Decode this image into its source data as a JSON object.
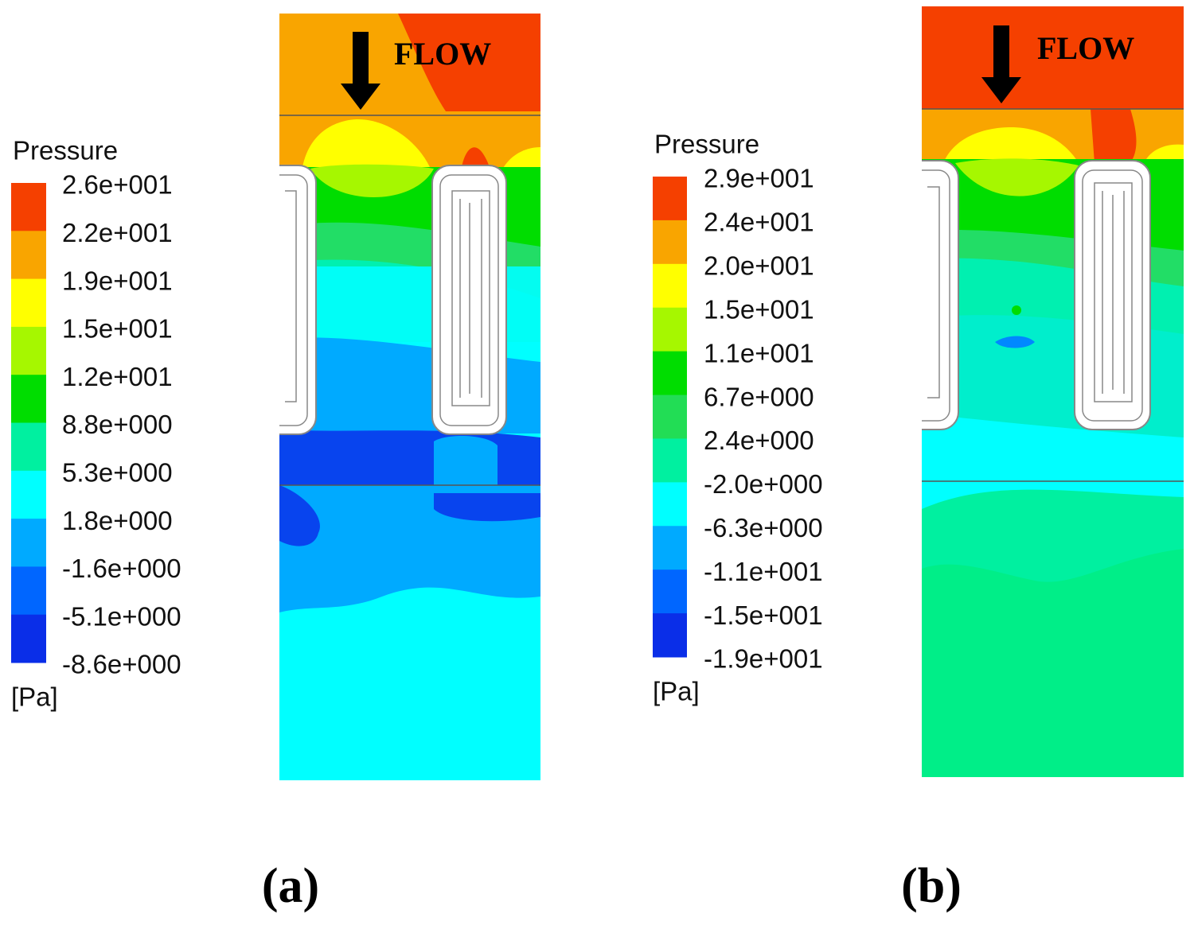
{
  "panels": [
    {
      "caption": "(a)",
      "annotation": "FLOW",
      "legend": {
        "title": "Pressure",
        "unit": "[Pa]",
        "labels": [
          "2.6e+001",
          "2.2e+001",
          "1.9e+001",
          "1.5e+001",
          "1.2e+001",
          "8.8e+000",
          "5.3e+000",
          "1.8e+000",
          "-1.6e+000",
          "-5.1e+000",
          "-8.6e+000"
        ]
      }
    },
    {
      "caption": "(b)",
      "annotation": "FLOW",
      "legend": {
        "title": "Pressure",
        "unit": "[Pa]",
        "labels": [
          "2.9e+001",
          "2.4e+001",
          "2.0e+001",
          "1.5e+001",
          "1.1e+001",
          "6.7e+000",
          "2.4e+000",
          "-2.0e+000",
          "-6.3e+000",
          "-1.1e+001",
          "-1.5e+001",
          "-1.9e+001"
        ]
      }
    }
  ]
}
